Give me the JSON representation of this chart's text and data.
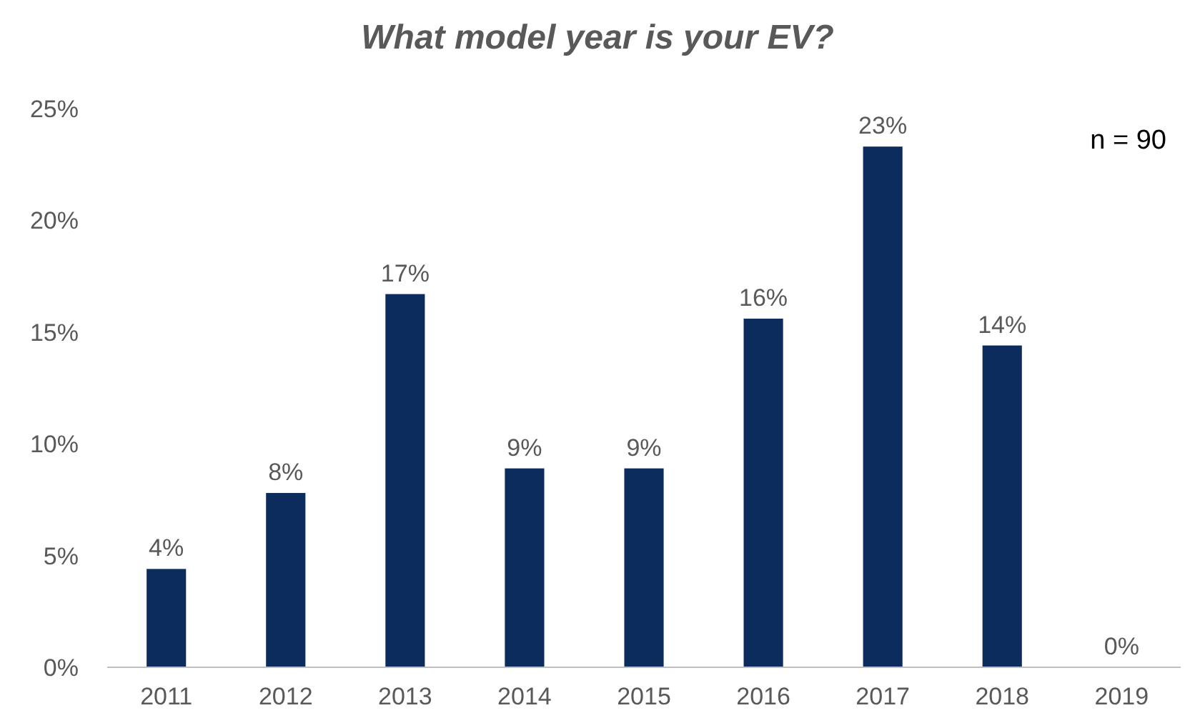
{
  "chart_data": {
    "type": "bar",
    "title": "What model year is your EV?",
    "categories": [
      "2011",
      "2012",
      "2013",
      "2014",
      "2015",
      "2016",
      "2017",
      "2018",
      "2019"
    ],
    "values": [
      4.4,
      7.8,
      16.7,
      8.9,
      8.9,
      15.6,
      23.3,
      14.4,
      0
    ],
    "value_labels": [
      "4%",
      "8%",
      "17%",
      "9%",
      "9%",
      "16%",
      "23%",
      "14%",
      "0%"
    ],
    "color": "#0d2c5e",
    "ylim": [
      0,
      25
    ],
    "yticks": [
      {
        "value": 0,
        "label": "0%"
      },
      {
        "value": 5,
        "label": "5%"
      },
      {
        "value": 10,
        "label": "10%"
      },
      {
        "value": 15,
        "label": "15%"
      },
      {
        "value": 20,
        "label": "20%"
      },
      {
        "value": 25,
        "label": "25%"
      }
    ],
    "grid": false,
    "annotations": [
      "n = 90"
    ]
  }
}
